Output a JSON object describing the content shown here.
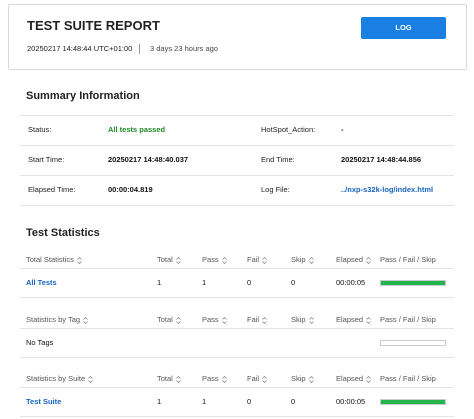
{
  "header": {
    "title": "TEST SUITE REPORT",
    "generated": "20250217 14:48:44 UTC+01:00",
    "age": "3 days 23 hours ago",
    "log_button": "LOG"
  },
  "summary": {
    "title": "Summary Information",
    "rows": [
      [
        {
          "label": "Status:",
          "value": "All tests passed"
        },
        {
          "label": "HotSpot_Action:",
          "value": "-"
        }
      ],
      [
        {
          "label": "Start Time:",
          "value": "20250217 14:48:40.037"
        },
        {
          "label": "End Time:",
          "value": "20250217 14:48:44.856"
        }
      ],
      [
        {
          "label": "Elapsed Time:",
          "value": "00:00:04.819"
        },
        {
          "label": "Log File:",
          "value": "../nxp-s32k-log/index.html"
        }
      ]
    ]
  },
  "statistics": {
    "title": "Test Statistics",
    "columns": [
      "Total",
      "Pass",
      "Fail",
      "Skip",
      "Elapsed",
      "Pass / Fail / Skip"
    ],
    "tables": [
      {
        "name": "Total Statistics",
        "rows": [
          {
            "label": "All Tests",
            "total": 1,
            "pass": 1,
            "fail": 0,
            "skip": 0,
            "elapsed": "00:00:05"
          }
        ]
      },
      {
        "name": "Statistics by Tag",
        "empty": "No Tags"
      },
      {
        "name": "Statistics by Suite",
        "rows": [
          {
            "label": "Test Suite",
            "total": 1,
            "pass": 1,
            "fail": 0,
            "skip": 0,
            "elapsed": "00:00:05"
          }
        ]
      }
    ]
  }
}
